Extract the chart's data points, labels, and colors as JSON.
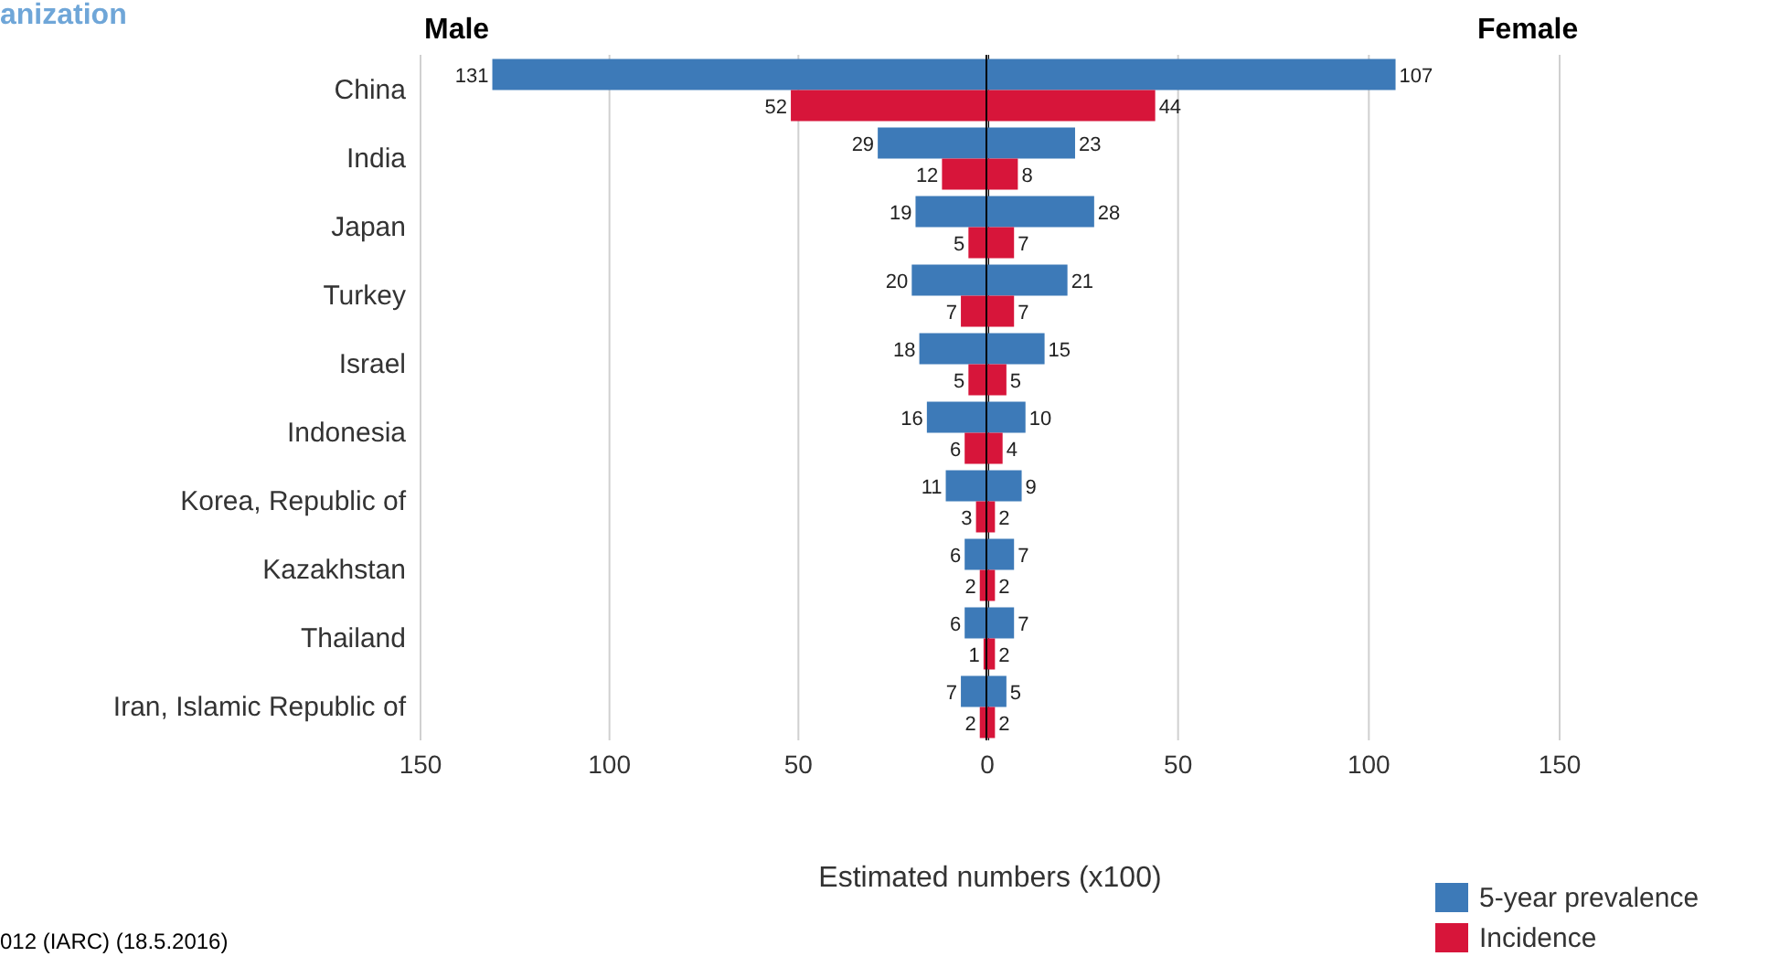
{
  "chart_data": [
    {
      "type": "bar",
      "orientation": "horizontal",
      "title": "Male",
      "xlabel": "Estimated numbers (x100)",
      "annotations": [
        "anization",
        "012 (IARC) (18.5.2016)"
      ],
      "categories": [
        "China",
        "India",
        "Japan",
        "Turkey",
        "Israel",
        "Indonesia",
        "Korea, Republic of",
        "Kazakhstan",
        "Thailand",
        "Iran, Islamic Republic of"
      ],
      "series": [
        {
          "color": "#3d7ab8",
          "values": [
            131,
            29,
            19,
            20,
            18,
            16,
            11,
            6,
            6,
            7
          ]
        },
        {
          "color": "#d7153a",
          "values": [
            52,
            12,
            5,
            7,
            5,
            6,
            3,
            2,
            1,
            2
          ]
        }
      ],
      "xlim": [
        150,
        0
      ],
      "xticks": [
        150,
        100,
        50,
        0
      ],
      "ref_lines": [
        {
          "axis": "x",
          "value": 0,
          "color": "#000000"
        }
      ],
      "grid": "x",
      "data_labels": true
    },
    {
      "type": "bar",
      "orientation": "horizontal",
      "title": "Female",
      "categories": [
        null,
        null,
        null,
        null,
        null,
        null,
        null,
        null,
        null,
        null
      ],
      "series": [
        {
          "name": "5-year prevalence",
          "color": "#3d7ab8",
          "values": [
            107,
            23,
            28,
            21,
            15,
            10,
            9,
            7,
            7,
            5
          ]
        },
        {
          "name": "Incidence",
          "color": "#d7153a",
          "values": [
            44,
            8,
            7,
            7,
            5,
            4,
            2,
            2,
            2,
            2
          ]
        }
      ],
      "xlim": [
        0,
        150
      ],
      "xticks": [
        50,
        100,
        150
      ],
      "grid": "x",
      "data_labels": true,
      "tick_labels": "x",
      "legend": "bottom right"
    }
  ]
}
